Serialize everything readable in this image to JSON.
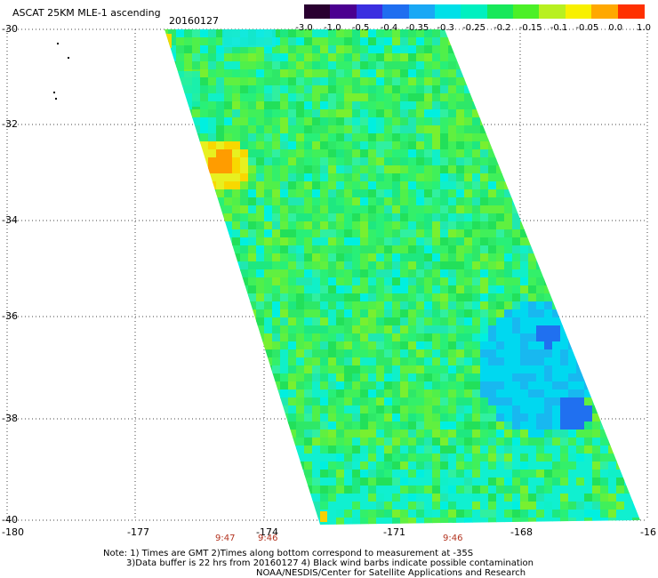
{
  "header": {
    "title": "ASCAT 25KM MLE-1 ascending",
    "date": "20160127"
  },
  "colorbar": {
    "labels": [
      "-3.0",
      "-1.0",
      "-0.5",
      "-0.4",
      "-0.35",
      "-0.3",
      "-0.25",
      "-0.2",
      "-0.15",
      "-0.1",
      "-0.05",
      "0.0",
      "1.0"
    ],
    "colors": [
      "#2a0030",
      "#4b0090",
      "#3b2fe0",
      "#1f6ef0",
      "#1aa8f5",
      "#00e0e8",
      "#00f0c0",
      "#18e85a",
      "#4cf028",
      "#b8f020",
      "#f8f000",
      "#ffa800",
      "#ff3000"
    ]
  },
  "map": {
    "lat_labels": [
      "-30",
      "-32",
      "-34",
      "-36",
      "-38",
      "-40"
    ],
    "lon_labels": [
      "-180",
      "-177",
      "-174",
      "-171",
      "-168",
      "-16"
    ],
    "time_labels": [
      "9:47",
      "9:46",
      "9:46"
    ]
  },
  "footer": {
    "line1": "Note: 1) Times are GMT 2)Times along bottom correspond to measurement at -35S",
    "line2": "3)Data buffer is 22 hrs from 20160127 4) Black wind barbs indicate possible contamination",
    "line3": "NOAA/NESDIS/Center for Satellite Applications and Research"
  }
}
